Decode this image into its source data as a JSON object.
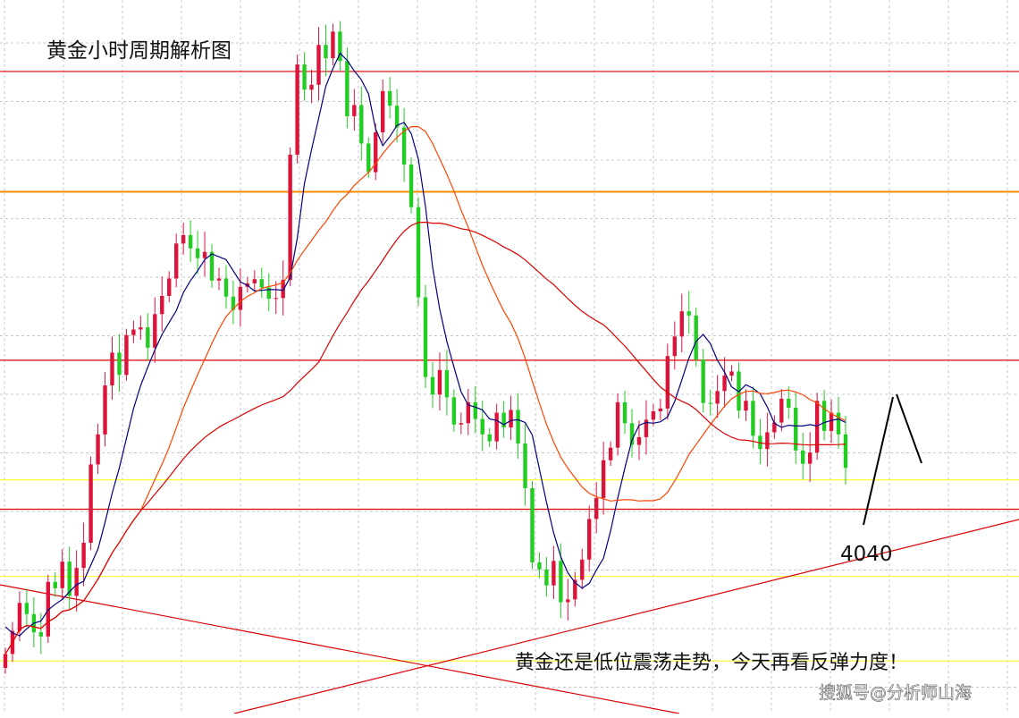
{
  "chart_data": {
    "type": "candlestick",
    "title": "黄金小时周期解析图",
    "annotation_level": "4040",
    "annotation_text": "黄金还是低位震荡走势，今天再看反弹力度！",
    "watermark": "搜狐号@分析师山海",
    "ylim": [
      0,
      100
    ],
    "colors": {
      "up": "#dc143c",
      "down": "#22cc22",
      "ma_fast": "#000080",
      "ma_mid": "#ff4500",
      "ma_slow": "#dd0000",
      "resistance": "#dd0000",
      "pivot": "#ff8c00",
      "support": "#ffff33"
    },
    "horizontal_levels": [
      {
        "kind": "resistance",
        "value": 90.8
      },
      {
        "kind": "pivot",
        "value": 73.6
      },
      {
        "kind": "resistance",
        "value": 49.5
      },
      {
        "kind": "support",
        "value": 32.4
      },
      {
        "kind": "resistance",
        "value": 28.2
      },
      {
        "kind": "support",
        "value": 18.6
      },
      {
        "kind": "support",
        "value": 6.5
      }
    ],
    "close": [
      7.5,
      10.8,
      14.8,
      13.2,
      10.6,
      10,
      17.8,
      16.9,
      20.7,
      15.8,
      19.8,
      23.4,
      34.6,
      38.9,
      45.9,
      50.6,
      47.4,
      53.1,
      53.9,
      54.2,
      51.3,
      56.1,
      58.7,
      61.2,
      66.2,
      67.4,
      65.5,
      64.1,
      65,
      60.9,
      61.2,
      58.6,
      56.7,
      60,
      60.5,
      61.1,
      59.9,
      58.3,
      58.4,
      61,
      78.9,
      91.8,
      88.2,
      88.9,
      94.6,
      92.7,
      96.5,
      92.3,
      84.4,
      86,
      80.5,
      76.4,
      82.1,
      88,
      85.9,
      82.8,
      77.5,
      71.4,
      58.5,
      47.1,
      44.6,
      48.1,
      44.2,
      40.3,
      40.5,
      43.5,
      41.1,
      38.9,
      37.9,
      42,
      39.9,
      42.4,
      37.6,
      31.2,
      20.6,
      19.6,
      17.3,
      20.8,
      14.9,
      15.3,
      18.1,
      21,
      26.8,
      29.8,
      35.2,
      37,
      43.5,
      40.5,
      37.4,
      38.5,
      41,
      42.2,
      42.6,
      50.1,
      52.9,
      56.5,
      55.9,
      49.6,
      43.4,
      43.3,
      45.1,
      47.3,
      47.9,
      42.3,
      43.7,
      38.7,
      36.8,
      39.2,
      40.6,
      44,
      42.7,
      36.6,
      34.7,
      36.3,
      43.7,
      39.4,
      42,
      38.9,
      34.1
    ],
    "ma_fast": [
      11.4,
      10.5,
      10.1,
      11.1,
      11.9,
      12.2,
      13.8,
      14.6,
      15.3,
      16.4,
      17.4,
      17.9,
      20.2,
      22.5,
      26.3,
      30.5,
      34.1,
      38.3,
      42.6,
      45.9,
      48.5,
      51,
      53.2,
      54.9,
      56.6,
      59.2,
      60.9,
      62.3,
      63.9,
      64.7,
      64.3,
      63.9,
      62.3,
      60.7,
      60.2,
      59.4,
      59.5,
      59.6,
      59.6,
      59.5,
      61.3,
      67,
      74.8,
      79.6,
      84.1,
      88.7,
      91.2,
      93.4,
      92.4,
      90.9,
      89.6,
      87.6,
      82.6,
      80.2,
      81.5,
      83.1,
      83.5,
      81.9,
      78.3,
      71.5,
      62.8,
      56.8,
      52.2,
      48.5,
      45,
      43.1,
      42.8,
      42.4,
      41.1,
      40.9,
      40.3,
      40.9,
      41,
      40.6,
      38.8,
      33.9,
      29.2,
      24.8,
      21.4,
      19.1,
      17.7,
      16.9,
      17.6,
      19.5,
      21.2,
      25.1,
      29.8,
      34.1,
      38.1,
      40.2,
      40.6,
      40.5,
      40.7,
      41.4,
      43.6,
      46.7,
      49.8,
      52.2,
      53.2,
      51.9,
      49.5,
      47.8,
      45.7,
      45,
      46,
      45.5,
      44.7,
      42.8,
      40.5,
      39.9,
      40.2,
      40.1,
      40.1,
      40.3,
      40.1,
      40.6,
      40.9,
      41.1,
      40.6
    ]
  }
}
